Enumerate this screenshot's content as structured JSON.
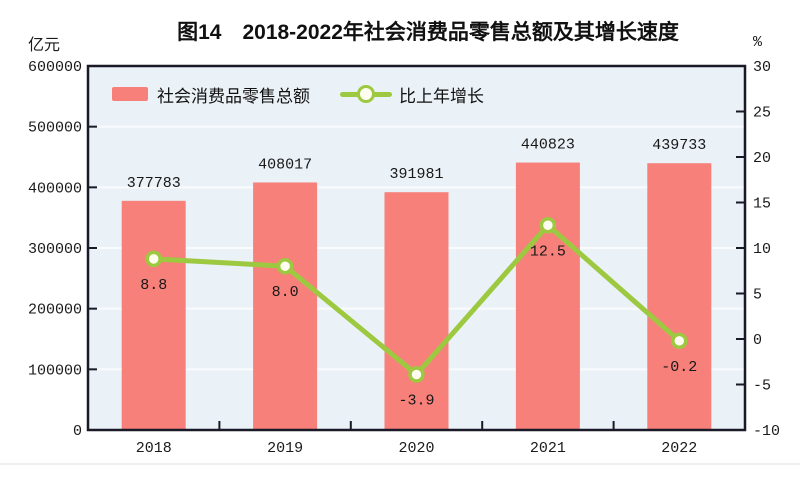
{
  "page": {
    "background": "#ffffff",
    "divider_color": "#efefec"
  },
  "chart_data": {
    "type": "bar",
    "title": "图14　2018-2022年社会消费品零售总额及其增长速度",
    "categories": [
      "2018",
      "2019",
      "2020",
      "2021",
      "2022"
    ],
    "series": [
      {
        "name": "社会消费品零售总额",
        "kind": "bar",
        "axis": "left",
        "color": "#f8807a",
        "values": [
          377783,
          408017,
          391981,
          440823,
          439733
        ],
        "labels": [
          "377783",
          "408017",
          "391981",
          "440823",
          "439733"
        ]
      },
      {
        "name": "比上年增长",
        "kind": "line",
        "axis": "right",
        "color": "#9cc93f",
        "marker_fill": "#fffdf0",
        "values": [
          8.8,
          8.0,
          -3.9,
          12.5,
          -0.2
        ],
        "labels": [
          "8.8",
          "8.0",
          "-3.9",
          "12.5",
          "-0.2"
        ]
      }
    ],
    "left_axis": {
      "unit": "亿元",
      "min": 0,
      "max": 600000,
      "step": 100000,
      "tick_labels": [
        "600000",
        "500000",
        "400000",
        "300000",
        "200000",
        "100000",
        "0"
      ]
    },
    "right_axis": {
      "unit": "%",
      "min": -10,
      "max": 30,
      "step": 5,
      "tick_labels": [
        "30",
        "25",
        "20",
        "15",
        "10",
        "5",
        "0",
        "-5",
        "-10"
      ]
    },
    "legend": {
      "position": "top-left-inside",
      "items": [
        "社会消费品零售总额",
        "比上年增长"
      ]
    },
    "grid": "horizontal",
    "plot_background": "#eaf1f7",
    "grid_color": "#f9fbfd",
    "border_color": "#191927",
    "text_color": "#1a1a1a"
  }
}
